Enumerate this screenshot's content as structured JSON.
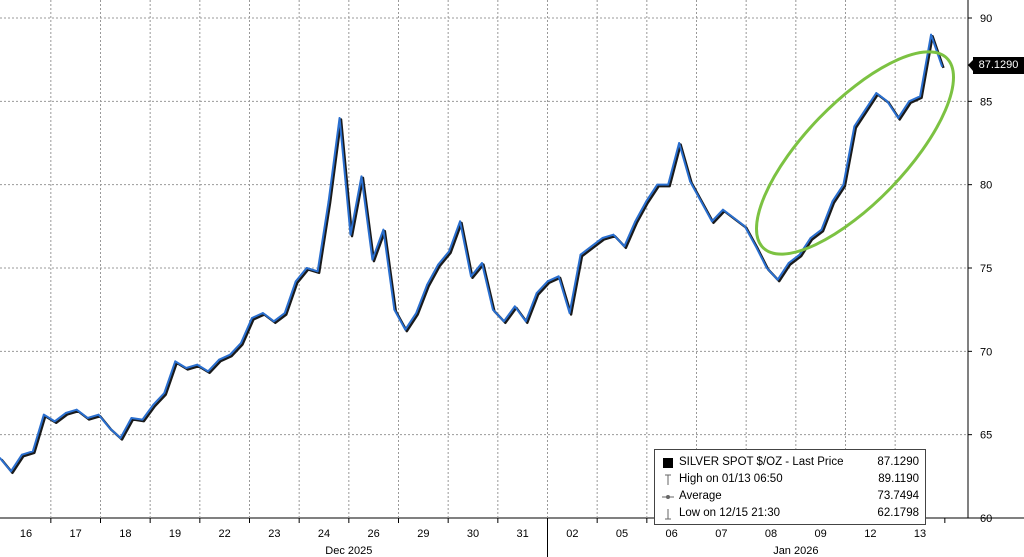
{
  "chart_data": {
    "type": "line",
    "title": "",
    "xlabel": "",
    "ylabel": "",
    "ylim": [
      60,
      90
    ],
    "y_ticks": [
      60,
      65,
      70,
      75,
      80,
      85,
      90
    ],
    "x_tick_labels": [
      "16",
      "17",
      "18",
      "19",
      "22",
      "23",
      "24",
      "26",
      "29",
      "30",
      "31",
      "02",
      "05",
      "06",
      "07",
      "08",
      "09",
      "12",
      "13"
    ],
    "x_group_labels": [
      "Dec 2025",
      "Jan 2026"
    ],
    "grid": true,
    "series": [
      {
        "name": "SILVER SPOT $/OZ - Last Price",
        "color": "#2a6fcf",
        "values": [
          63.6,
          62.8,
          63.8,
          64.0,
          66.2,
          65.8,
          66.3,
          66.5,
          66.0,
          66.2,
          65.4,
          64.8,
          66.0,
          65.9,
          66.8,
          67.5,
          69.4,
          69.0,
          69.2,
          68.8,
          69.5,
          69.8,
          70.5,
          72.0,
          72.3,
          71.8,
          72.3,
          74.2,
          75.0,
          74.8,
          79.0,
          84.0,
          77.0,
          80.5,
          75.5,
          77.3,
          72.5,
          71.3,
          72.3,
          74.0,
          75.2,
          76.0,
          77.8,
          74.5,
          75.3,
          72.5,
          71.8,
          72.7,
          71.8,
          73.5,
          74.2,
          74.5,
          72.3,
          75.8,
          76.3,
          76.8,
          77.0,
          76.3,
          77.8,
          79.0,
          80.0,
          80.0,
          82.5,
          80.2,
          79.0,
          77.8,
          78.5,
          78.0,
          77.5,
          76.3,
          75.0,
          74.3,
          75.3,
          75.8,
          76.8,
          77.3,
          79.0,
          80.0,
          83.5,
          84.5,
          85.5,
          85.0,
          84.0,
          85.0,
          85.3,
          89.0,
          87.1
        ]
      }
    ],
    "legend": {
      "position": "bottom-right",
      "entries": [
        {
          "label": "SILVER SPOT $/OZ - Last Price",
          "value": "87.1290",
          "icon": "filled-square-icon"
        },
        {
          "label": "High on 01/13 06:50",
          "value": "89.1190",
          "icon": "high-marker-icon"
        },
        {
          "label": "Average",
          "value": "73.7494",
          "icon": "average-marker-icon"
        },
        {
          "label": "Low on 12/15 21:30",
          "value": "62.1798",
          "icon": "low-marker-icon"
        }
      ]
    },
    "last_price_tag": "87.1290",
    "annotation": {
      "shape": "ellipse",
      "color": "#7cc242"
    }
  }
}
